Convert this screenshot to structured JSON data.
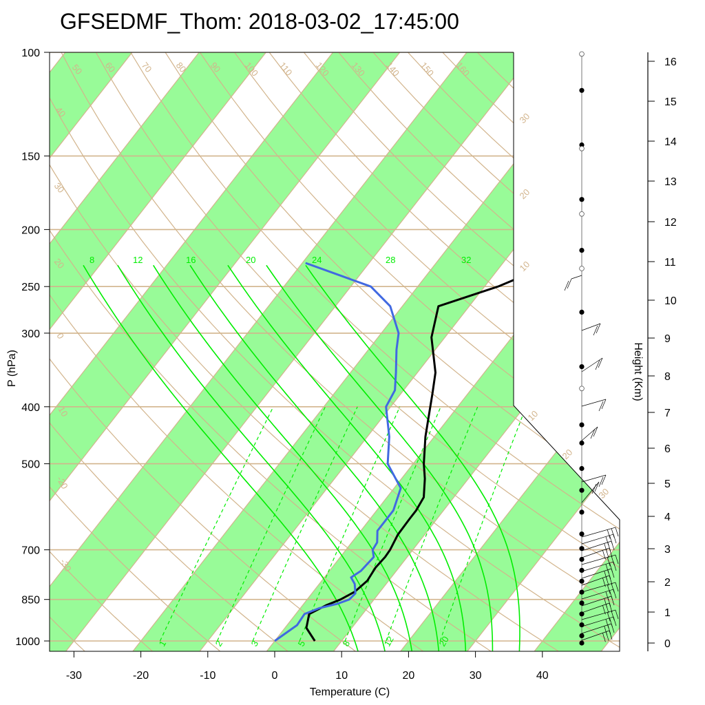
{
  "title": "GFSEDMF_Thom: 2018-03-02_17:45:00",
  "chart_data": {
    "type": "line",
    "title": "GFSEDMF_Thom: 2018-03-02_17:45:00",
    "xlabel": "Temperature (C)",
    "ylabel": "P (hPa)",
    "y2label": "Height (Km)",
    "xlim": [
      -34,
      53
    ],
    "ylim": [
      100,
      1050
    ],
    "y_scale": "log",
    "x_ticks": [
      -30,
      -20,
      -10,
      0,
      10,
      20,
      30,
      40
    ],
    "x_tick_labels": [
      "-30",
      "-20",
      "-10",
      "0",
      "10",
      "20",
      "30",
      "40"
    ],
    "p_ticks": [
      100,
      150,
      200,
      250,
      300,
      400,
      500,
      700,
      850,
      1000
    ],
    "p_tick_labels": [
      "100",
      "150",
      "200",
      "250",
      "300",
      "400",
      "500",
      "700",
      "850",
      "1000"
    ],
    "height_ticks_km": [
      0,
      1,
      2,
      3,
      4,
      5,
      6,
      7,
      8,
      9,
      10,
      11,
      12,
      13,
      14,
      15,
      16
    ],
    "height_tick_labels": [
      "0",
      "1",
      "2",
      "3",
      "4",
      "5",
      "6",
      "7",
      "8",
      "9",
      "10",
      "11",
      "12",
      "13",
      "14",
      "15",
      "16"
    ],
    "skew_isotherm_labels": [
      "-30",
      "-20",
      "-10",
      "0",
      "10",
      "20",
      "30"
    ],
    "isotherm_label_values": [
      -30,
      -20,
      -10,
      0,
      10,
      20,
      30
    ],
    "dry_adiabat_labels": [
      "-30",
      "-20",
      "-10",
      "0",
      "10",
      "20",
      "30",
      "40",
      "50",
      "60",
      "70",
      "80",
      "90",
      "100",
      "110",
      "120",
      "130",
      "140",
      "150",
      "160"
    ],
    "moist_adiabat_labels": [
      "8",
      "12",
      "16",
      "20",
      "24",
      "28",
      "32"
    ],
    "mixing_ratio_labels": [
      "1",
      "2",
      "3",
      "5",
      "8",
      "12",
      "20"
    ],
    "series": [
      {
        "name": "temperature",
        "color": "#000000",
        "points": [
          [
            6.0,
            1000
          ],
          [
            3.2,
            950
          ],
          [
            2.0,
            900
          ],
          [
            3.5,
            870
          ],
          [
            5.0,
            850
          ],
          [
            6.2,
            825
          ],
          [
            6.8,
            790
          ],
          [
            6.5,
            750
          ],
          [
            6.7,
            720
          ],
          [
            6.6,
            700
          ],
          [
            6.0,
            660
          ],
          [
            5.9,
            620
          ],
          [
            5.9,
            600
          ],
          [
            5.5,
            570
          ],
          [
            3.5,
            530
          ],
          [
            1.6,
            500
          ],
          [
            -1.3,
            450
          ],
          [
            -3.5,
            410
          ],
          [
            -5.3,
            380
          ],
          [
            -7.3,
            350
          ],
          [
            -12.0,
            305
          ],
          [
            -14.6,
            270
          ],
          [
            -8.0,
            250
          ],
          [
            -2.8,
            230
          ]
        ]
      },
      {
        "name": "dewpoint",
        "color": "#4169e1",
        "points": [
          [
            0.0,
            1000
          ],
          [
            1.5,
            940
          ],
          [
            1.3,
            900
          ],
          [
            2.8,
            880
          ],
          [
            5.0,
            865
          ],
          [
            6.3,
            850
          ],
          [
            6.5,
            830
          ],
          [
            5.3,
            800
          ],
          [
            4.0,
            780
          ],
          [
            4.7,
            760
          ],
          [
            5.0,
            720
          ],
          [
            4.0,
            700
          ],
          [
            3.8,
            680
          ],
          [
            2.5,
            650
          ],
          [
            2.5,
            600
          ],
          [
            1.0,
            550
          ],
          [
            -3.8,
            500
          ],
          [
            -6.7,
            450
          ],
          [
            -10.7,
            400
          ],
          [
            -11.3,
            375
          ],
          [
            -13.2,
            350
          ],
          [
            -15.8,
            320
          ],
          [
            -17.4,
            300
          ],
          [
            -21.8,
            270
          ],
          [
            -27.0,
            250
          ],
          [
            -39.5,
            228
          ]
        ]
      }
    ],
    "height_markers": {
      "filled_km": [
        0,
        0.2,
        0.5,
        0.8,
        1.1,
        1.4,
        1.7,
        2.0,
        2.3,
        2.6,
        3.0,
        3.6,
        4.2,
        4.8,
        5.5,
        6.0,
        7.6,
        9.1,
        10.8,
        12.2,
        13.7,
        15.2
      ],
      "open_km": [
        7.0,
        10.3,
        11.8,
        13.6,
        16.2
      ]
    }
  }
}
